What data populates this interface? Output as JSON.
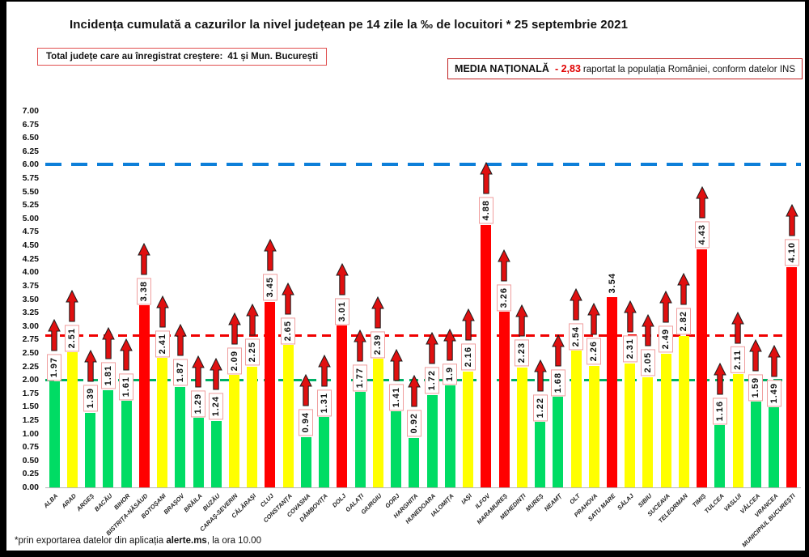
{
  "title": "Incidența cumulată a cazurilor la nivel județean pe 14 zile la ‰ de locuitori * 25 septembrie 2021",
  "info_box": {
    "label": "Total județe care au înregistrat creștere:",
    "value": "41 și Mun. București"
  },
  "media_box": {
    "label": "MEDIA NAȚIONALĂ",
    "value": "- 2,83",
    "suffix": "raportat la populația României, conform datelor INS"
  },
  "footer": {
    "prefix": "*prin exportarea datelor din aplicația ",
    "app": "alerte.ms",
    "suffix": ", la ora 10.00"
  },
  "colors": {
    "bar_green": "#00dc64",
    "bar_yellow": "#ffff00",
    "bar_red": "#ff0000",
    "blue_line": "#0d7fd9",
    "red_line": "#f00000",
    "green_line": "#00b065",
    "label_box_border": "#f09e9e",
    "arrow": "#e01010",
    "average_value_text": "#e00000"
  },
  "chart_data": {
    "type": "bar",
    "title": "Incidența cumulată a cazurilor la nivel județean pe 14 zile la ‰ de locuitori * 25 septembrie 2021",
    "xlabel": "",
    "ylabel": "",
    "ylim": [
      0,
      7
    ],
    "ytick_step": 0.25,
    "grid": false,
    "legend": false,
    "yticks": [
      "7.00",
      "6.75",
      "6.50",
      "6.25",
      "6.00",
      "5.75",
      "5.50",
      "5.25",
      "5.00",
      "4.75",
      "4.50",
      "4.25",
      "4.00",
      "3.75",
      "3.50",
      "3.25",
      "3.00",
      "2.75",
      "2.50",
      "2.25",
      "2.00",
      "1.75",
      "1.50",
      "1.25",
      "1.00",
      "0.75",
      "0.50",
      "0.25",
      "0.00"
    ],
    "reference_lines": [
      {
        "name": "upper-threshold-line",
        "value": 6.0,
        "style": "blue",
        "color": "#0d7fd9"
      },
      {
        "name": "national-average-line",
        "value": 2.83,
        "style": "red",
        "color": "#f00000"
      },
      {
        "name": "incidence-threshold-line",
        "value": 2.0,
        "style": "green",
        "color": "#00b065"
      }
    ],
    "categories": [
      "ALBA",
      "ARAD",
      "ARGEȘ",
      "BACĂU",
      "BIHOR",
      "BISTRIȚA-NĂSĂUD",
      "BOTOȘANI",
      "BRAȘOV",
      "BRĂILA",
      "BUZĂU",
      "CARAȘ-SEVERIN",
      "CĂLĂRAȘI",
      "CLUJ",
      "CONSTANȚA",
      "COVASNA",
      "DÂMBOVIȚA",
      "DOLJ",
      "GALAȚI",
      "GIURGIU",
      "GORJ",
      "HARGHITA",
      "HUNEDOARA",
      "IALOMIȚA",
      "IAȘI",
      "ILFOV",
      "MARAMUREȘ",
      "MEHEDINȚI",
      "MUREȘ",
      "NEAMȚ",
      "OLT",
      "PRAHOVA",
      "SATU MARE",
      "SĂLAJ",
      "SIBIU",
      "SUCEAVA",
      "TELEORMAN",
      "TIMIȘ",
      "TULCEA",
      "VASLUI",
      "VÂLCEA",
      "VRANCEA",
      "MUNICIPIUL BUCUREȘTI"
    ],
    "values": [
      1.97,
      2.51,
      1.39,
      1.81,
      1.61,
      3.38,
      2.41,
      1.87,
      1.29,
      1.24,
      2.09,
      2.25,
      3.45,
      2.65,
      0.94,
      1.31,
      3.01,
      1.77,
      2.39,
      1.41,
      0.92,
      1.72,
      1.9,
      2.16,
      4.88,
      3.26,
      2.23,
      1.22,
      1.68,
      2.54,
      2.26,
      3.54,
      2.31,
      2.05,
      2.49,
      2.82,
      4.43,
      1.16,
      2.11,
      1.59,
      1.49,
      4.1
    ],
    "value_labels": [
      "1.97",
      "2.51",
      "1.39",
      "1.81",
      "1.61",
      "3.38",
      "2.41",
      "1.87",
      "1.29",
      "1.24",
      "2.09",
      "2.25",
      "3.45",
      "2.65",
      "0.94",
      "1.31",
      "3.01",
      "1.77",
      "2.39",
      "1.41",
      "0.92",
      "1.72",
      "1.9",
      "2.16",
      "4.88",
      "3.26",
      "2.23",
      "1.22",
      "1.68",
      "2.54",
      "2.26",
      "3.54",
      "2.31",
      "2.05",
      "2.49",
      "2.82",
      "4.43",
      "1.16",
      "2.11",
      "1.59",
      "1.49",
      "4.10"
    ],
    "bar_colors": [
      "green",
      "yellow",
      "green",
      "green",
      "green",
      "red",
      "yellow",
      "green",
      "green",
      "green",
      "yellow",
      "yellow",
      "red",
      "yellow",
      "green",
      "green",
      "red",
      "green",
      "yellow",
      "green",
      "green",
      "green",
      "green",
      "yellow",
      "red",
      "red",
      "yellow",
      "green",
      "green",
      "yellow",
      "yellow",
      "red",
      "yellow",
      "yellow",
      "yellow",
      "yellow",
      "red",
      "green",
      "yellow",
      "green",
      "green",
      "red"
    ],
    "has_arrow": [
      true,
      true,
      true,
      true,
      true,
      true,
      true,
      true,
      true,
      true,
      true,
      true,
      true,
      true,
      true,
      true,
      true,
      true,
      true,
      true,
      true,
      true,
      true,
      true,
      true,
      true,
      true,
      true,
      true,
      true,
      true,
      false,
      true,
      true,
      true,
      true,
      true,
      true,
      true,
      true,
      true,
      true
    ]
  }
}
